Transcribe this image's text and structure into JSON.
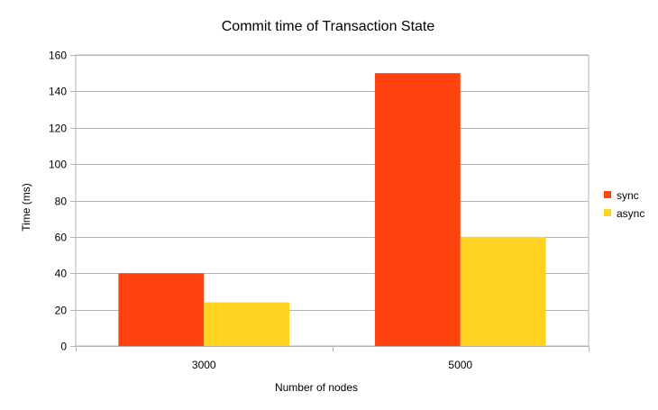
{
  "chart_data": {
    "type": "bar",
    "title": "Commit time of Transaction State",
    "xlabel": "Number of nodes",
    "ylabel": "Time (ms)",
    "categories": [
      "3000",
      "5000"
    ],
    "series": [
      {
        "name": "sync",
        "values": [
          40,
          150
        ],
        "color": "#ff420e"
      },
      {
        "name": "async",
        "values": [
          24,
          60
        ],
        "color": "#ffd320"
      }
    ],
    "ylim": [
      0,
      160
    ],
    "yticks": [
      0,
      20,
      40,
      60,
      80,
      100,
      120,
      140,
      160
    ],
    "grid": true,
    "legend": "right"
  }
}
